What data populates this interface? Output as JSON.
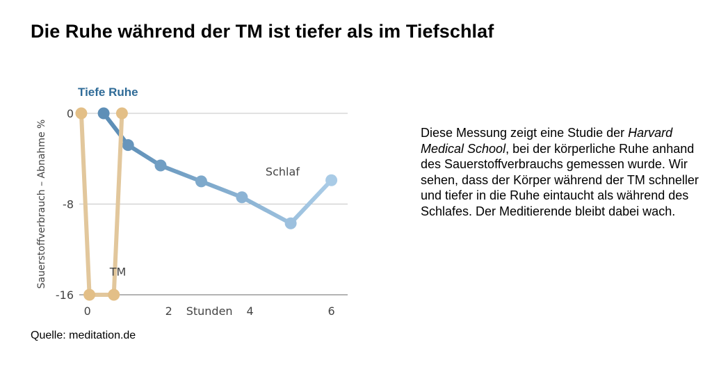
{
  "page": {
    "title": "Die Ruhe während der TM ist tiefer als im Tiefschlaf",
    "source": "Quelle: meditation.de"
  },
  "description": {
    "part1": "Diese Messung zeigt eine Studie der ",
    "italic": "Harvard Medical School",
    "part2": ", bei der körperliche Ruhe anhand des Sauerstoffverbrauchs gemessen wurde. Wir sehen, dass der Körper während der TM schneller und tiefer in die Ruhe eintaucht als während des Schlafes. Der Meditierende bleibt dabei wach."
  },
  "chart_data": {
    "type": "line",
    "title": "Tiefe Ruhe",
    "xlabel": "Stunden",
    "ylabel": "Sauerstoffverbrauch – Abnahme %",
    "ylim": [
      -16,
      0
    ],
    "xlim": [
      -0.2,
      6.4
    ],
    "yticks": [
      0,
      -8,
      -16
    ],
    "xtick_labels": [
      {
        "value": 0,
        "label": "0"
      },
      {
        "value": 2,
        "label": "2"
      },
      {
        "value": 4,
        "label": "4"
      },
      {
        "value": 6,
        "label": "6"
      }
    ],
    "xlabel_at": 3,
    "grid": true,
    "series": [
      {
        "name": "TM",
        "label_at": [
          0.75,
          -14.3
        ],
        "points": [
          [
            -0.15,
            0
          ],
          [
            0.05,
            -16
          ],
          [
            0.65,
            -16
          ],
          [
            0.85,
            0
          ]
        ],
        "color_line": "#e2c79c",
        "color_marker": "#e3bf87"
      },
      {
        "name": "Schlaf",
        "label_at": [
          4.8,
          -5.5
        ],
        "points": [
          [
            0.4,
            0
          ],
          [
            1.0,
            -2.8
          ],
          [
            1.8,
            -4.6
          ],
          [
            2.8,
            -6.0
          ],
          [
            3.8,
            -7.4
          ],
          [
            5.0,
            -9.7
          ],
          [
            6.0,
            -5.9
          ]
        ],
        "color_start": "#5e8fb7",
        "color_end": "#a9cbe6"
      }
    ]
  }
}
